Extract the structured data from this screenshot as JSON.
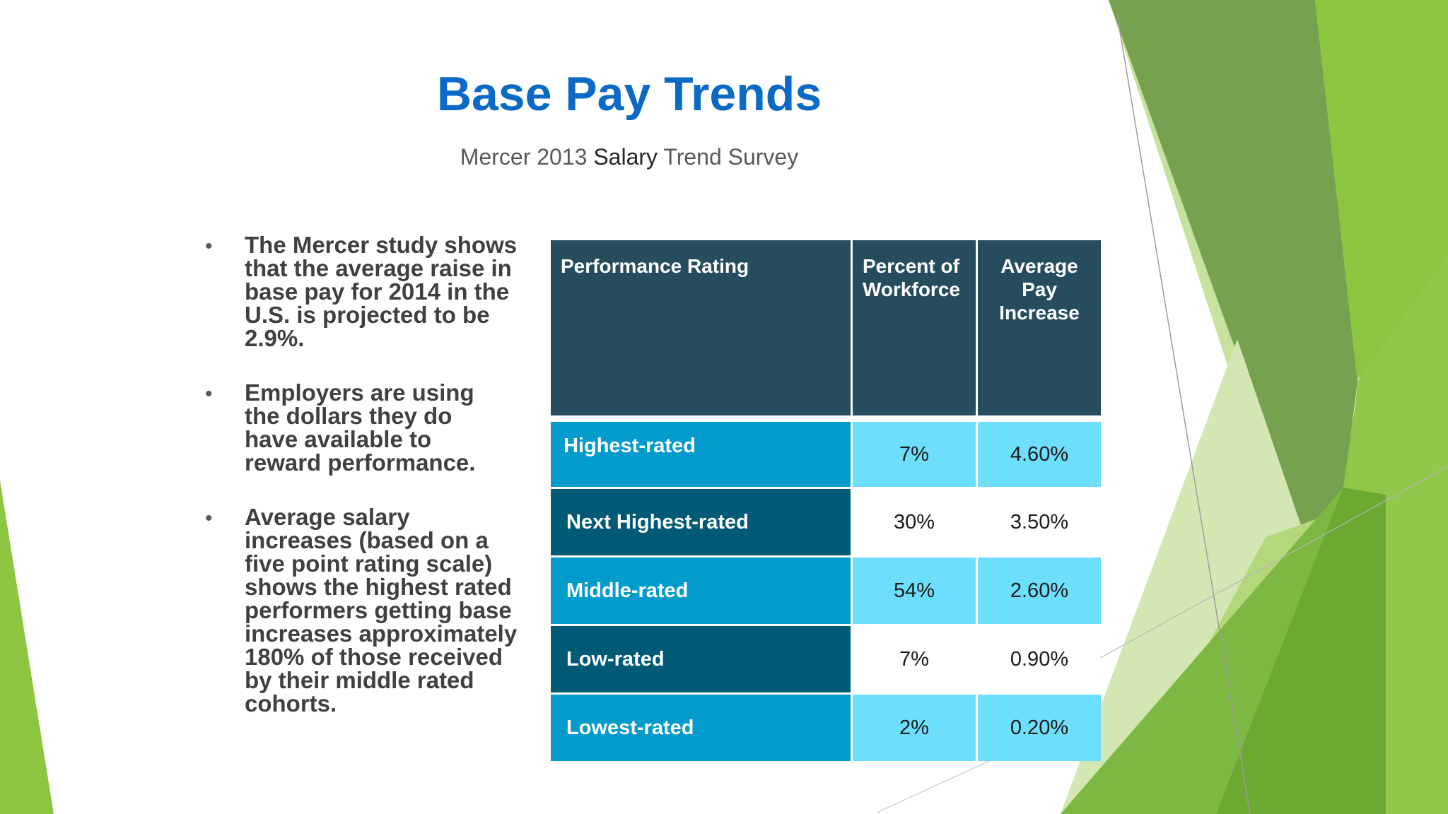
{
  "slide": {
    "title": "Base Pay Trends",
    "subtitle": {
      "part1": "Mercer 2013 ",
      "part2": "Salary",
      "part3": " Trend Survey"
    }
  },
  "bullets": [
    "The Mercer study shows that  the average raise in base pay  for 2014 in the U.S. is projected to be 2.9%.",
    "Employers are using the  dollars they do have available to reward performance.",
    "Average salary increases  (based on a five point rating  scale) shows the highest rated performers getting  base increases approximately 180% of those  received by their middle  rated cohorts."
  ],
  "bullet_symbol": "•",
  "table": {
    "headers": [
      "Performance Rating",
      "Percent of Workforce",
      "Average Pay Increase"
    ],
    "rows": [
      {
        "rating": "Highest-rated",
        "percent": "7%",
        "increase": "4.60%"
      },
      {
        "rating": "Next Highest-rated",
        "percent": "30%",
        "increase": "3.50%"
      },
      {
        "rating": "Middle-rated",
        "percent": "54%",
        "increase": "2.60%"
      },
      {
        "rating": "Low-rated",
        "percent": "7%",
        "increase": "0.90%"
      },
      {
        "rating": "Lowest-rated",
        "percent": "2%",
        "increase": "0.20%"
      }
    ]
  },
  "colors": {
    "title": "#0a6ac6",
    "header_bg": "#264d5e",
    "label_light": "#039bcb",
    "label_dark": "#005a75",
    "value_light": "#6ddffc",
    "value_white": "#ffffff",
    "accent_green": "#8ec641"
  }
}
